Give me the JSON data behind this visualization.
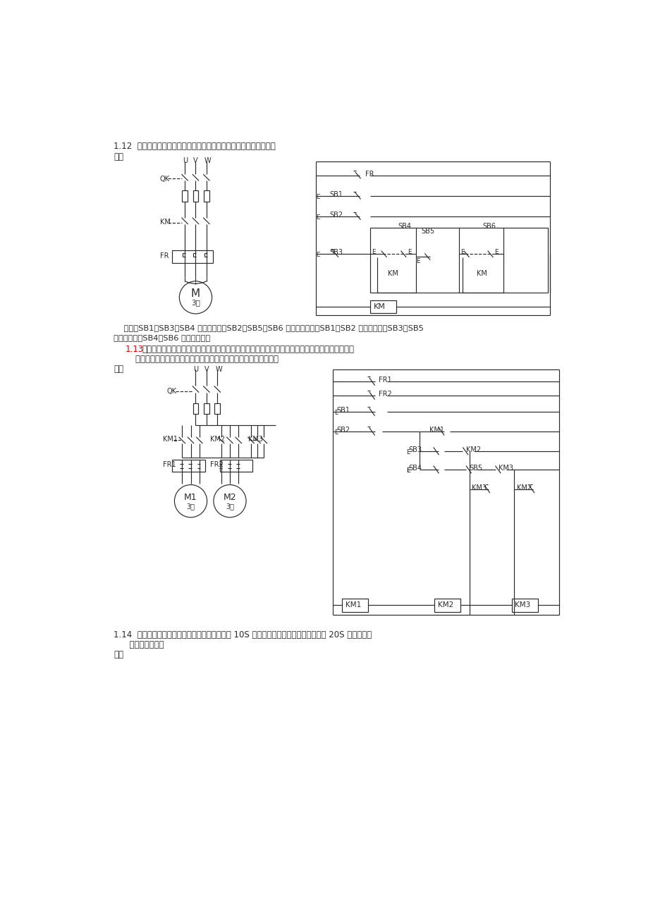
{
  "bg_color": "#ffffff",
  "line_color": "#2a2a2a",
  "red_color": "#cc0000",
  "title_112": "1.12  试设计对一台电动机可以进行两处操作的长动和点动控制线路。",
  "jie": "解：",
  "desc_112_1": "    图中，SB1、SB3、SB4 安装在一处，SB2、SB5、SB6 安装在另一处。SB1、SB2 为停止按钮，SB3、SB5",
  "desc_112_2": "为长动按钮，SB4、SB6 为点动按钮。",
  "num_113": "1.13",
  "title_113a": "某机床主轴和润滑油泵各由一台电动机带动，试设计其控制线路，要求主轴必须在油泵开动后才能",
  "title_113b": "    开动，主轴能正、反转并可单独停车，有短路、失压和过载保护。",
  "title_114": "1.14  设计一个控制线路，要求第一台电动机起动 10S 后，第二台电动机自动起动，运行 20S 后，两台电",
  "title_114b": "      动机同时停转。"
}
